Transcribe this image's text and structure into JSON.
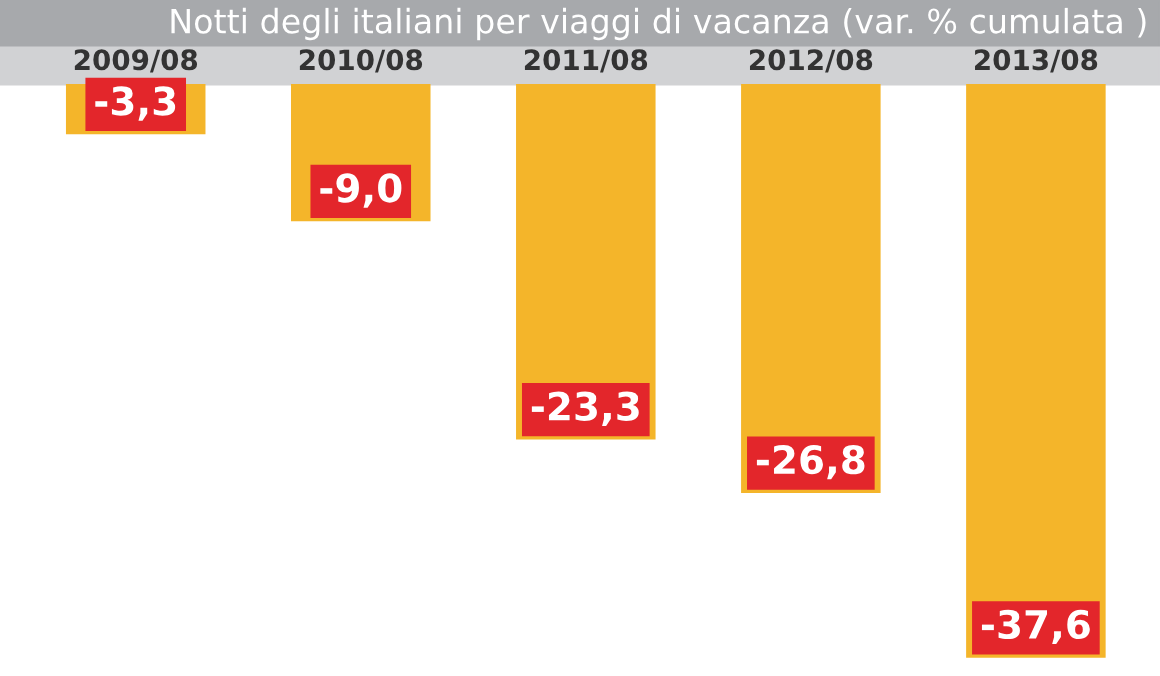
{
  "chart_data": {
    "type": "bar",
    "title": "Notti degli italiani per viaggi di vacanza (var. % cumulata )",
    "categories": [
      "2009/08",
      "2010/08",
      "2011/08",
      "2012/08",
      "2013/08"
    ],
    "values": [
      -3.3,
      -9.0,
      -23.3,
      -26.8,
      -37.6
    ],
    "value_labels": [
      "-3,3",
      "-9,0",
      "-23,3",
      "-26,8",
      "-37,6"
    ],
    "color": "#f4b52a",
    "grid": false
  }
}
